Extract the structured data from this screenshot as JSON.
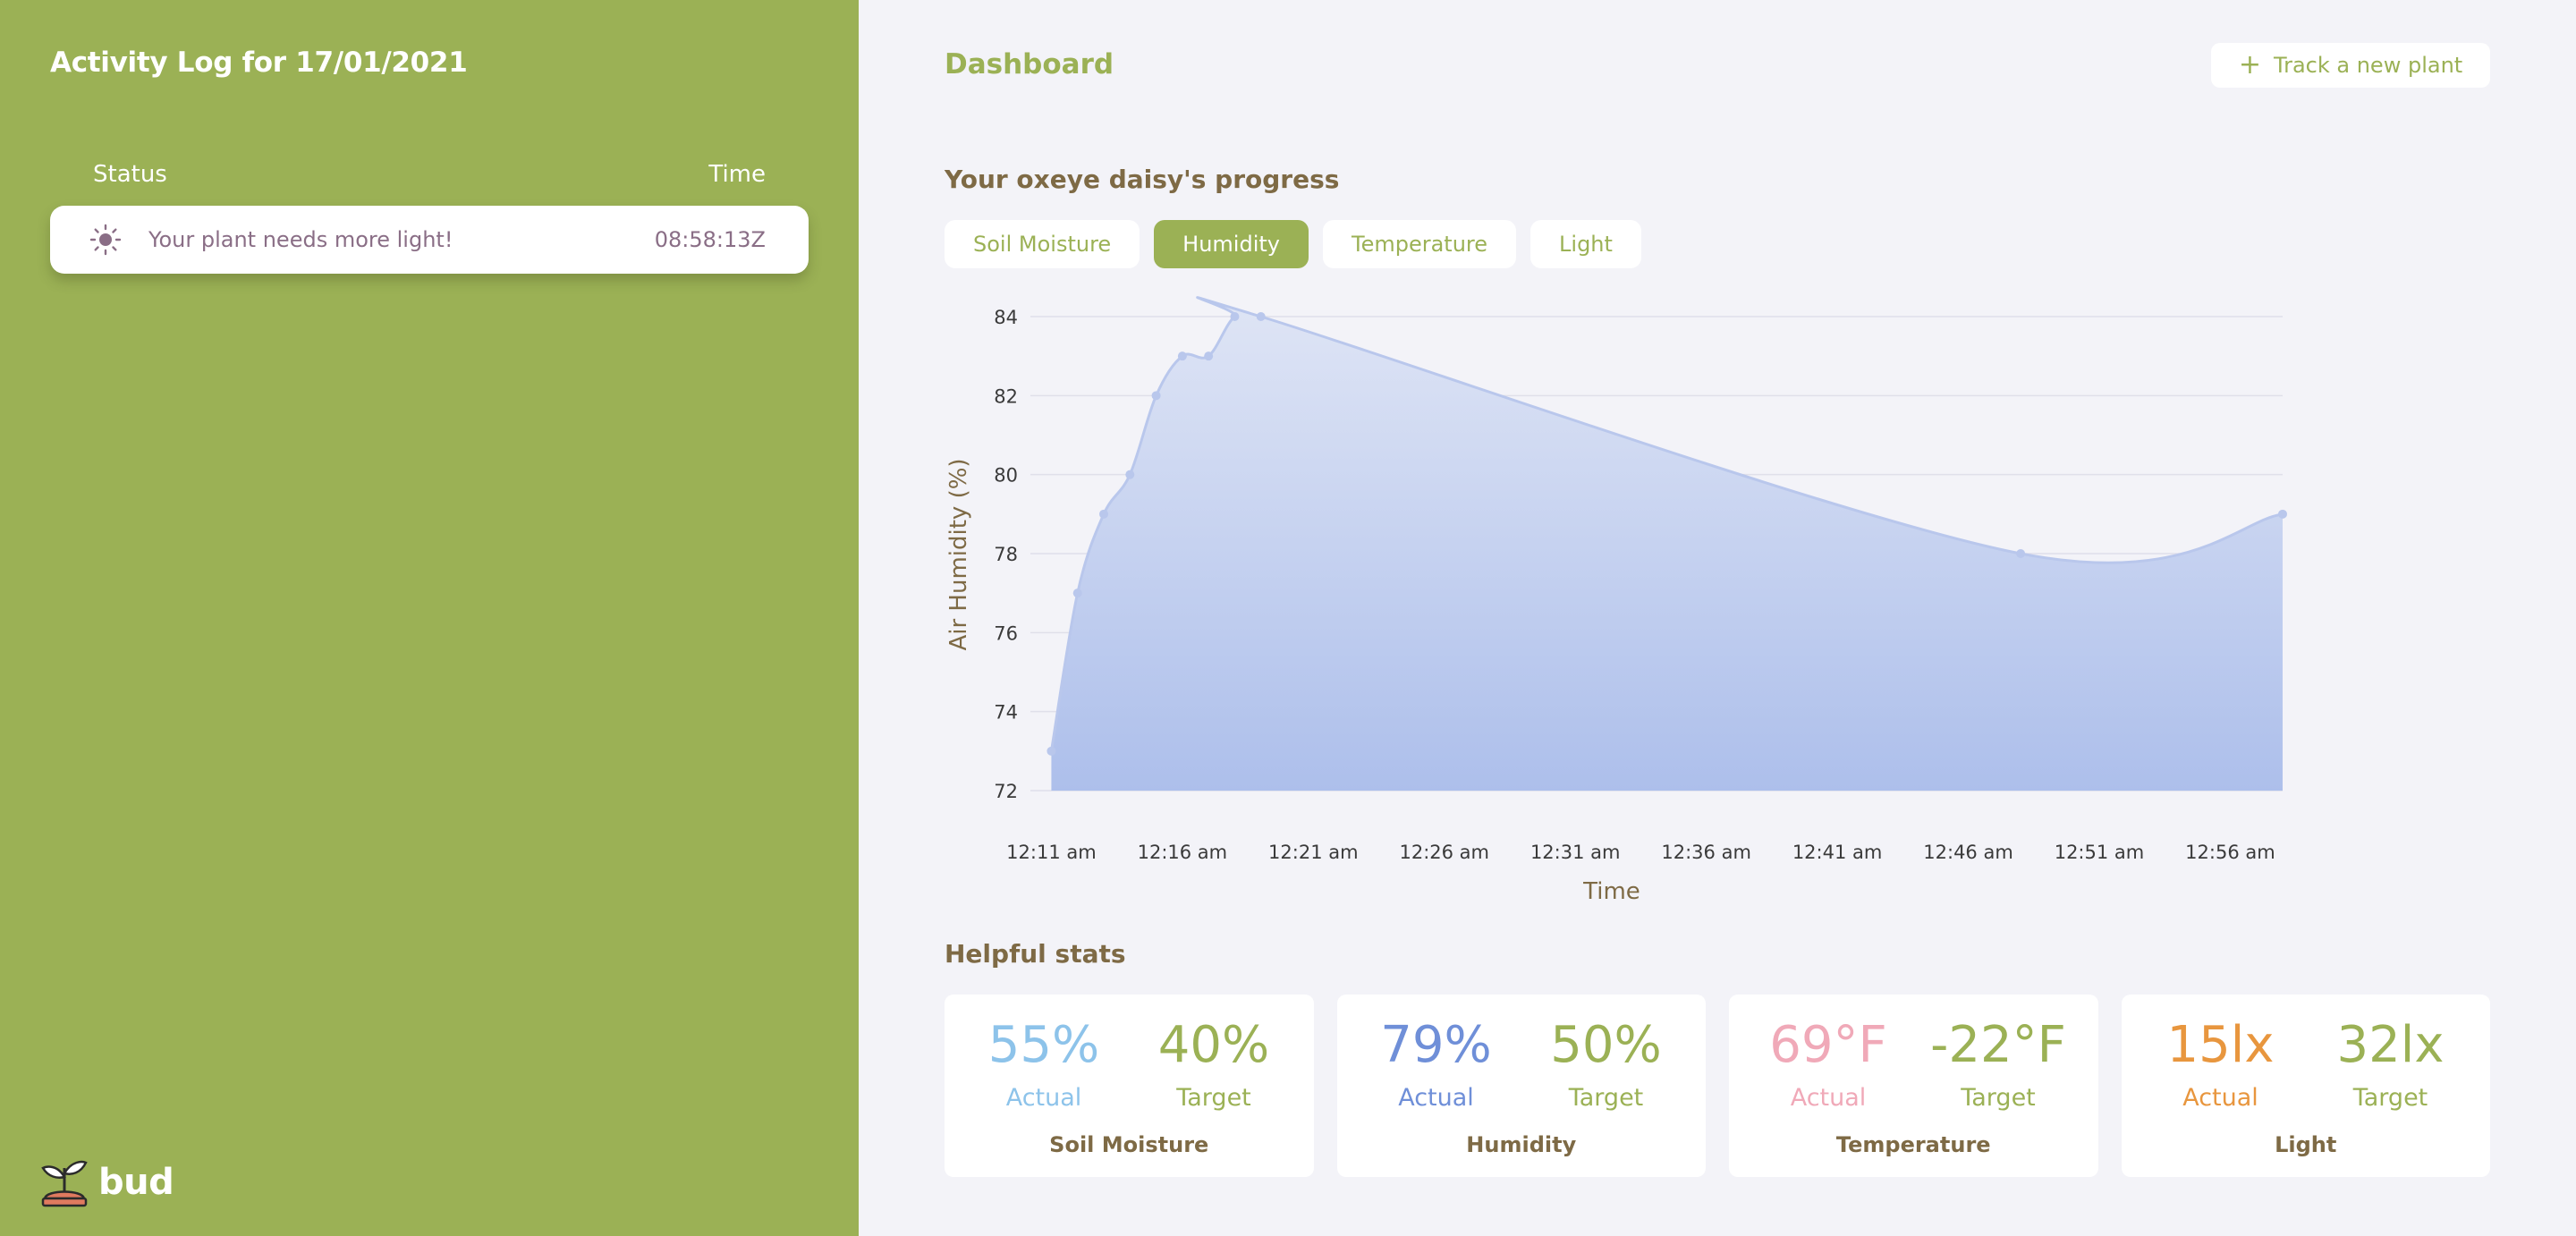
{
  "sidebar": {
    "title": "Activity Log for 17/01/2021",
    "headers": {
      "status": "Status",
      "time": "Time"
    },
    "log": [
      {
        "icon": "sun-icon",
        "message": "Your plant needs more light!",
        "time": "08:58:13Z"
      }
    ],
    "brand": {
      "name": "bud",
      "icon": "sprout-logo-icon"
    }
  },
  "main": {
    "title": "Dashboard",
    "track_button": {
      "icon": "plus-icon",
      "label": "Track a new plant"
    },
    "progress_title": "Your oxeye daisy's progress",
    "tabs": [
      {
        "label": "Soil Moisture",
        "active": false
      },
      {
        "label": "Humidity",
        "active": true
      },
      {
        "label": "Temperature",
        "active": false
      },
      {
        "label": "Light",
        "active": false
      }
    ],
    "stats_title": "Helpful stats",
    "stats": [
      {
        "name": "Soil Moisture",
        "actual": "55%",
        "target": "40%",
        "actual_label": "Actual",
        "target_label": "Target",
        "actual_color": "#8dc3ea",
        "target_color": "#9bb155"
      },
      {
        "name": "Humidity",
        "actual": "79%",
        "target": "50%",
        "actual_label": "Actual",
        "target_label": "Target",
        "actual_color": "#6f8fd8",
        "target_color": "#9bb155"
      },
      {
        "name": "Temperature",
        "actual": "69°F",
        "target": "-22°F",
        "actual_label": "Actual",
        "target_label": "Target",
        "actual_color": "#f0a9b8",
        "target_color": "#9bb155"
      },
      {
        "name": "Light",
        "actual": "15lx",
        "target": "32lx",
        "actual_label": "Actual",
        "target_label": "Target",
        "actual_color": "#e8963e",
        "target_color": "#9bb155"
      }
    ]
  },
  "colors": {
    "sidebar": "#9bb155",
    "accent": "#9bb155",
    "heading_brown": "#7e6a45",
    "log_text": "#8a6e86",
    "chart_fill": "#b3c4ec",
    "chart_line": "#b9c7ec"
  },
  "chart_data": {
    "type": "area",
    "xlabel": "Time",
    "ylabel": "Air Humidity (%)",
    "ylim": [
      72,
      84
    ],
    "yticks": [
      72,
      74,
      76,
      78,
      80,
      82,
      84
    ],
    "xticks": [
      "12:11 am",
      "12:16 am",
      "12:21 am",
      "12:26 am",
      "12:31 am",
      "12:36 am",
      "12:41 am",
      "12:46 am",
      "12:51 am",
      "12:56 am"
    ],
    "grid": true,
    "series": [
      {
        "points": [
          {
            "t": "12:11 am",
            "y": 73
          },
          {
            "t": "12:12 am",
            "y": 77
          },
          {
            "t": "12:13 am",
            "y": 79
          },
          {
            "t": "12:14 am",
            "y": 80
          },
          {
            "t": "12:15 am",
            "y": 82
          },
          {
            "t": "12:16 am",
            "y": 83
          },
          {
            "t": "12:17 am",
            "y": 83
          },
          {
            "t": "12:18 am",
            "y": 84
          },
          {
            "t": "12:19 am",
            "y": 84
          },
          {
            "t": "12:48 am",
            "y": 78
          },
          {
            "t": "12:58 am",
            "y": 79
          }
        ]
      }
    ]
  }
}
